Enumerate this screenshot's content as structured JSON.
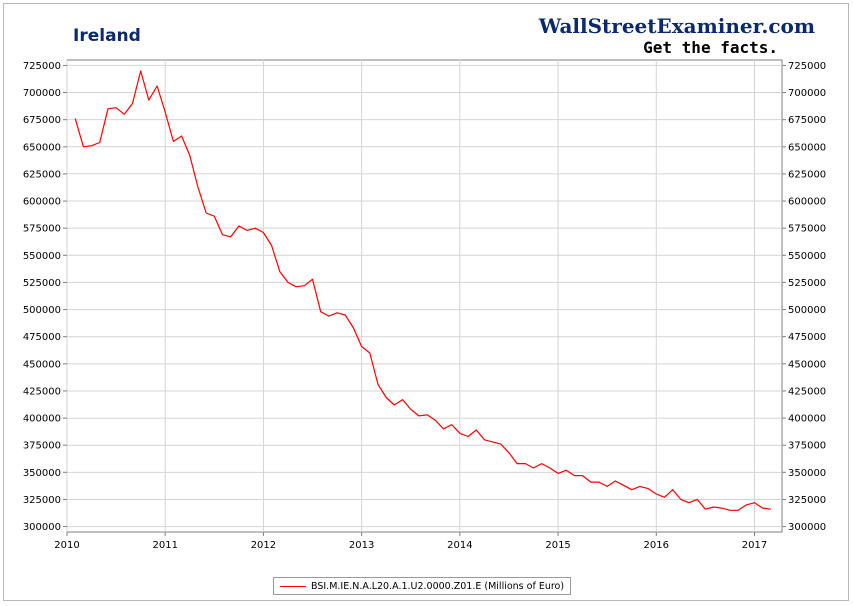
{
  "header": {
    "title": "Ireland",
    "brand": "WallStreetExaminer.com",
    "tagline": "Get the facts."
  },
  "colors": {
    "series": "#ff0000",
    "title": "#0a2a6b",
    "grid": "#d4d4d4",
    "axis": "#808080"
  },
  "chart_data": {
    "type": "line",
    "title": "Ireland",
    "xlabel": "",
    "ylabel": "",
    "xlim": [
      2010.0,
      2017.28
    ],
    "ylim": [
      295000,
      730000
    ],
    "grid": true,
    "legend_position": "bottom-center",
    "x_ticks": [
      "2010",
      "2011",
      "2012",
      "2013",
      "2014",
      "2015",
      "2016",
      "2017"
    ],
    "y_ticks": [
      "300000",
      "325000",
      "350000",
      "375000",
      "400000",
      "425000",
      "450000",
      "475000",
      "500000",
      "525000",
      "550000",
      "575000",
      "600000",
      "625000",
      "650000",
      "675000",
      "700000",
      "725000"
    ],
    "series": [
      {
        "name": "BSI.M.IE.N.A.L20.A.1.U2.0000.Z01.E (Millions of Euro)",
        "color": "#ff0000",
        "x": [
          2010.083,
          2010.167,
          2010.25,
          2010.333,
          2010.417,
          2010.5,
          2010.583,
          2010.667,
          2010.75,
          2010.833,
          2010.917,
          2011.0,
          2011.083,
          2011.167,
          2011.25,
          2011.333,
          2011.417,
          2011.5,
          2011.583,
          2011.667,
          2011.75,
          2011.833,
          2011.917,
          2012.0,
          2012.083,
          2012.167,
          2012.25,
          2012.333,
          2012.417,
          2012.5,
          2012.583,
          2012.667,
          2012.75,
          2012.833,
          2012.917,
          2013.0,
          2013.083,
          2013.167,
          2013.25,
          2013.333,
          2013.417,
          2013.5,
          2013.583,
          2013.667,
          2013.75,
          2013.833,
          2013.917,
          2014.0,
          2014.083,
          2014.167,
          2014.25,
          2014.333,
          2014.417,
          2014.5,
          2014.583,
          2014.667,
          2014.75,
          2014.833,
          2014.917,
          2015.0,
          2015.083,
          2015.167,
          2015.25,
          2015.333,
          2015.417,
          2015.5,
          2015.583,
          2015.667,
          2015.75,
          2015.833,
          2015.917,
          2016.0,
          2016.083,
          2016.167,
          2016.25,
          2016.333,
          2016.417,
          2016.5,
          2016.583,
          2016.667,
          2016.75,
          2016.833,
          2016.917,
          2017.0,
          2017.083,
          2017.167
        ],
        "values": [
          676000,
          650000,
          651000,
          654000,
          685000,
          686000,
          680000,
          690000,
          720000,
          693000,
          706000,
          682000,
          655000,
          660000,
          642000,
          613000,
          589000,
          586000,
          569000,
          567000,
          577000,
          573000,
          575000,
          571000,
          559000,
          535000,
          525000,
          521000,
          522000,
          528000,
          498000,
          494000,
          497000,
          495000,
          483000,
          466000,
          460000,
          431000,
          419000,
          412000,
          417000,
          408000,
          402000,
          403000,
          398000,
          390000,
          394000,
          386000,
          383000,
          389000,
          380000,
          378000,
          376000,
          368000,
          358000,
          358000,
          354000,
          358000,
          354000,
          349000,
          352000,
          347000,
          347000,
          341000,
          341000,
          337000,
          342000,
          338000,
          334000,
          337000,
          335000,
          330000,
          327000,
          334000,
          325000,
          322000,
          325000,
          316000,
          318000,
          317000,
          315000,
          315000,
          320000,
          322000,
          317000,
          316000
        ]
      }
    ]
  }
}
